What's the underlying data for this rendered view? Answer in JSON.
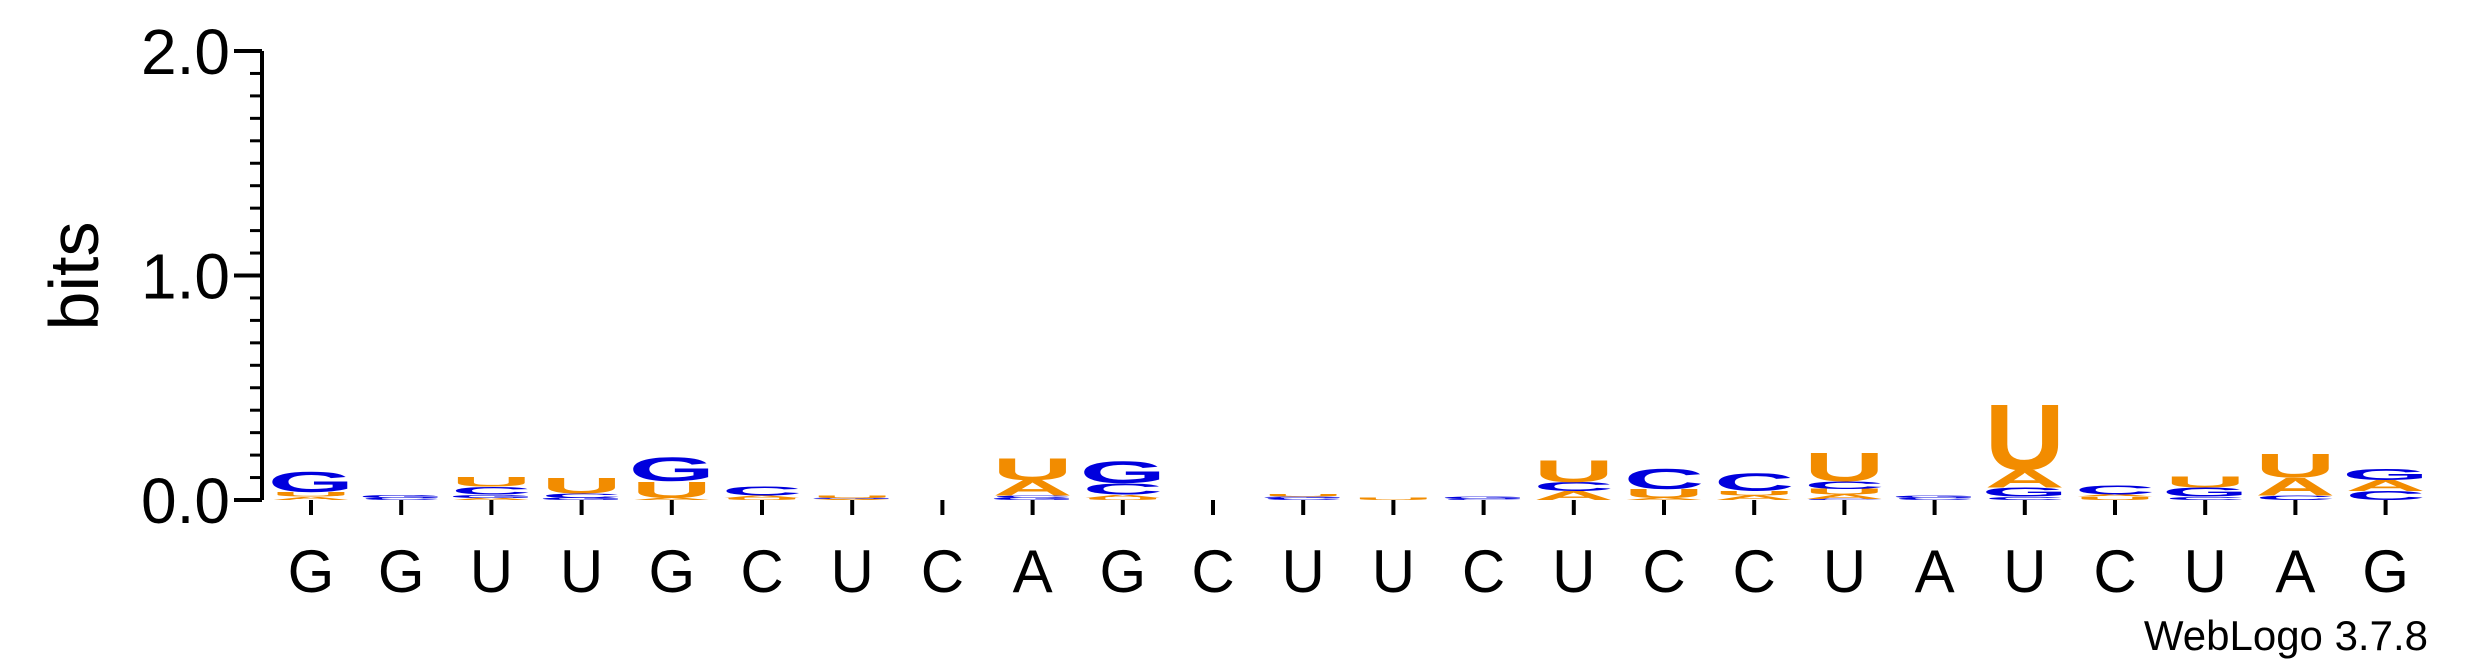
{
  "chart_data": {
    "type": "sequence-logo",
    "ylabel": "bits",
    "ylim": [
      0,
      2.0
    ],
    "yticks": [
      "0.0",
      "1.0",
      "2.0"
    ],
    "y_minor_step": 0.1,
    "alphabet_colors": {
      "A": "#f28c00",
      "U": "#f28c00",
      "G": "#0000dd",
      "C": "#0000dd"
    },
    "positions": [
      {
        "label": "G",
        "letters": [
          {
            "l": "A",
            "v": 0.015
          },
          {
            "l": "U",
            "v": 0.02
          },
          {
            "l": "G",
            "v": 0.09
          }
        ]
      },
      {
        "label": "G",
        "letters": [
          {
            "l": "C",
            "v": 0.01
          },
          {
            "l": "G",
            "v": 0.015
          }
        ]
      },
      {
        "label": "U",
        "letters": [
          {
            "l": "A",
            "v": 0.01
          },
          {
            "l": "G",
            "v": 0.015
          },
          {
            "l": "C",
            "v": 0.035
          },
          {
            "l": "U",
            "v": 0.045
          }
        ]
      },
      {
        "label": "U",
        "letters": [
          {
            "l": "G",
            "v": 0.01
          },
          {
            "l": "C",
            "v": 0.02
          },
          {
            "l": "U",
            "v": 0.07
          }
        ]
      },
      {
        "label": "G",
        "letters": [
          {
            "l": "A",
            "v": 0.01
          },
          {
            "l": "U",
            "v": 0.075
          },
          {
            "l": "G",
            "v": 0.11
          }
        ]
      },
      {
        "label": "C",
        "letters": [
          {
            "l": "U",
            "v": 0.01
          },
          {
            "l": "A",
            "v": 0.01
          },
          {
            "l": "C",
            "v": 0.04
          }
        ]
      },
      {
        "label": "U",
        "letters": [
          {
            "l": "A",
            "v": 0.005
          },
          {
            "l": "G",
            "v": 0.005
          },
          {
            "l": "U",
            "v": 0.01
          }
        ]
      },
      {
        "label": "C",
        "letters": []
      },
      {
        "label": "A",
        "letters": [
          {
            "l": "G",
            "v": 0.01
          },
          {
            "l": "C",
            "v": 0.01
          },
          {
            "l": "A",
            "v": 0.07
          },
          {
            "l": "U",
            "v": 0.1
          }
        ]
      },
      {
        "label": "G",
        "letters": [
          {
            "l": "U",
            "v": 0.01
          },
          {
            "l": "A",
            "v": 0.015
          },
          {
            "l": "C",
            "v": 0.05
          },
          {
            "l": "G",
            "v": 0.1
          }
        ]
      },
      {
        "label": "C",
        "letters": []
      },
      {
        "label": "U",
        "letters": [
          {
            "l": "C",
            "v": 0.01
          },
          {
            "l": "G",
            "v": 0.005
          },
          {
            "l": "U",
            "v": 0.01
          }
        ]
      },
      {
        "label": "U",
        "letters": [
          {
            "l": "U",
            "v": 0.01
          }
        ]
      },
      {
        "label": "C",
        "letters": [
          {
            "l": "C",
            "v": 0.005
          },
          {
            "l": "G",
            "v": 0.01
          }
        ]
      },
      {
        "label": "U",
        "letters": [
          {
            "l": "A",
            "v": 0.04
          },
          {
            "l": "C",
            "v": 0.04
          },
          {
            "l": "U",
            "v": 0.1
          }
        ]
      },
      {
        "label": "C",
        "letters": [
          {
            "l": "A",
            "v": 0.01
          },
          {
            "l": "U",
            "v": 0.04
          },
          {
            "l": "C",
            "v": 0.09
          }
        ]
      },
      {
        "label": "C",
        "letters": [
          {
            "l": "A",
            "v": 0.02
          },
          {
            "l": "U",
            "v": 0.02
          },
          {
            "l": "C",
            "v": 0.08
          }
        ]
      },
      {
        "label": "U",
        "letters": [
          {
            "l": "C",
            "v": 0.005
          },
          {
            "l": "A",
            "v": 0.02
          },
          {
            "l": "U",
            "v": 0.025
          },
          {
            "l": "C",
            "v": 0.035
          },
          {
            "l": "U",
            "v": 0.13
          }
        ]
      },
      {
        "label": "A",
        "letters": [
          {
            "l": "C",
            "v": 0.01
          },
          {
            "l": "G",
            "v": 0.01
          }
        ]
      },
      {
        "label": "U",
        "letters": [
          {
            "l": "C",
            "v": 0.015
          },
          {
            "l": "G",
            "v": 0.04
          },
          {
            "l": "A",
            "v": 0.08
          },
          {
            "l": "U",
            "v": 0.3
          }
        ]
      },
      {
        "label": "C",
        "letters": [
          {
            "l": "U",
            "v": 0.015
          },
          {
            "l": "A",
            "v": 0.01
          },
          {
            "l": "C",
            "v": 0.04
          }
        ]
      },
      {
        "label": "U",
        "letters": [
          {
            "l": "C",
            "v": 0.015
          },
          {
            "l": "G",
            "v": 0.04
          },
          {
            "l": "U",
            "v": 0.05
          }
        ]
      },
      {
        "label": "A",
        "letters": [
          {
            "l": "C",
            "v": 0.02
          },
          {
            "l": "A",
            "v": 0.08
          },
          {
            "l": "U",
            "v": 0.11
          }
        ]
      },
      {
        "label": "G",
        "letters": [
          {
            "l": "C",
            "v": 0.04
          },
          {
            "l": "A",
            "v": 0.05
          },
          {
            "l": "G",
            "v": 0.05
          }
        ]
      }
    ]
  },
  "credit": "WebLogo 3.7.8"
}
